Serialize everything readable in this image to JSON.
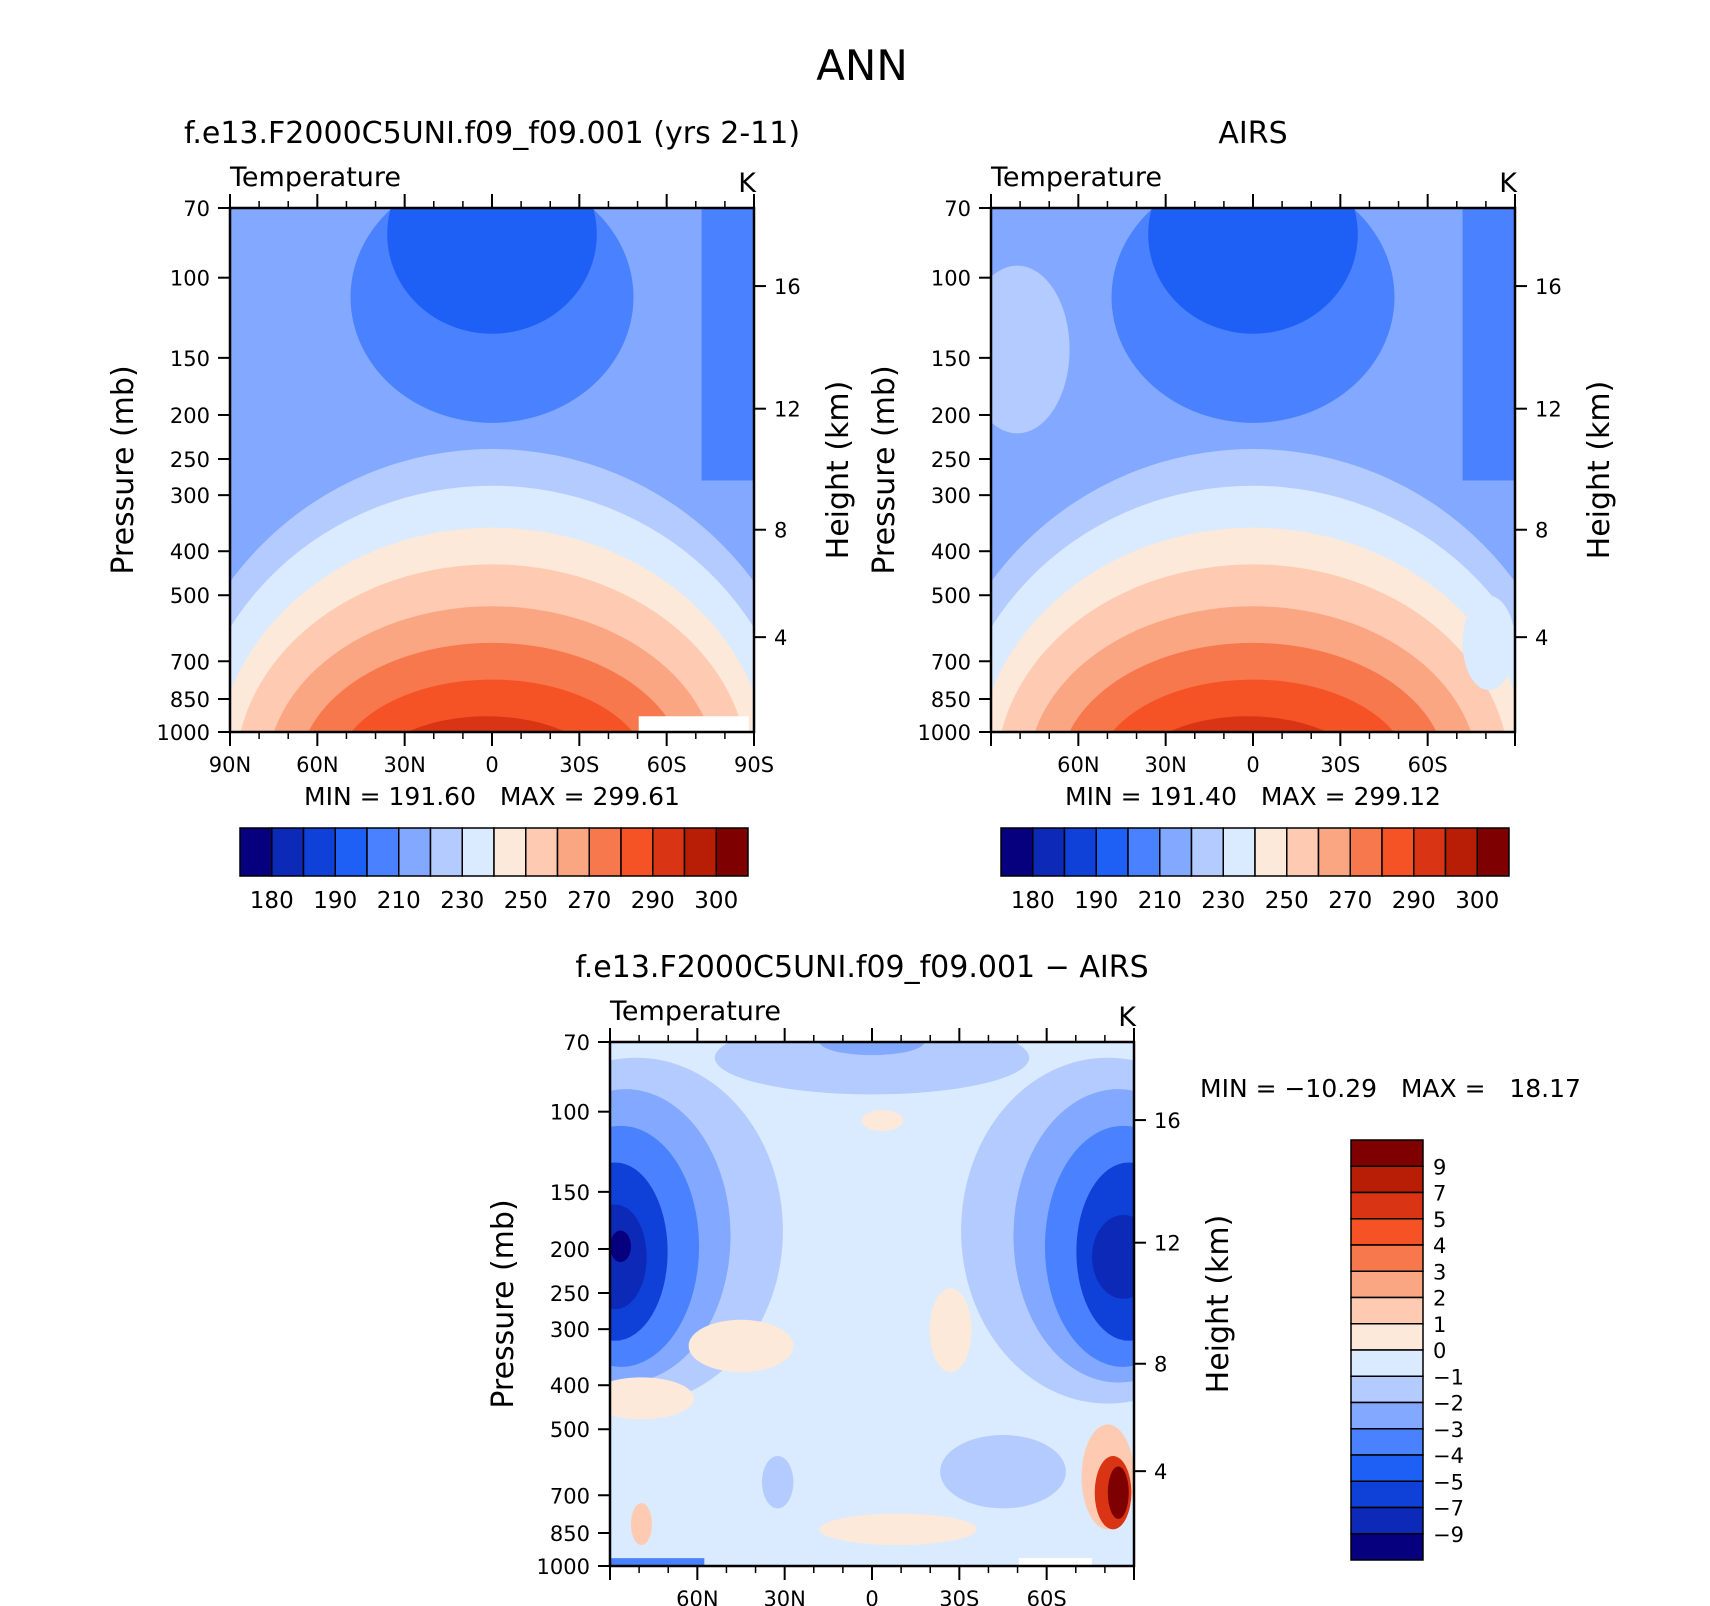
{
  "figure_title": "ANN",
  "palettes": {
    "abs": [
      "#06007f",
      "#0c29b8",
      "#0f41d8",
      "#1e5ff5",
      "#4a81ff",
      "#82a9ff",
      "#b4cbff",
      "#daeaff",
      "#fde9da",
      "#fecab2",
      "#fba682",
      "#f7784c",
      "#f55325",
      "#d93514",
      "#b81e06",
      "#7f0000"
    ],
    "diff": [
      "#06007f",
      "#0c29b8",
      "#0f41d8",
      "#1e5ff5",
      "#4a81ff",
      "#82a9ff",
      "#b4cbff",
      "#daeaff",
      "#fde9da",
      "#fecab2",
      "#fba682",
      "#f7784c",
      "#f55325",
      "#d93514",
      "#b81e06",
      "#7f0000"
    ]
  },
  "chart_data": [
    {
      "type": "heatmap",
      "title": "f.e13.F2000C5UNI.f09_f09.001 (yrs 2-11)",
      "subtitle_left": "Temperature",
      "subtitle_right": "K",
      "xlabel": "",
      "ylabel": "Pressure (mb)",
      "y2label": "Height (km)",
      "xticks": [
        "90N",
        "60N",
        "30N",
        "0",
        "30S",
        "60S",
        "90S"
      ],
      "yticks": [
        "70",
        "100",
        "150",
        "200",
        "250",
        "300",
        "400",
        "500",
        "700",
        "850",
        "1000"
      ],
      "y2ticks": [
        "16",
        "12",
        "8",
        "4"
      ],
      "stats": "MIN = 191.60   MAX = 299.61",
      "colorbar_labels": [
        "180",
        "190",
        "210",
        "230",
        "250",
        "270",
        "290",
        "300"
      ],
      "ylim": [
        1000,
        70
      ],
      "xlim": [
        90,
        -90
      ],
      "note_x": "latitude, positive = N",
      "field": "abs"
    },
    {
      "type": "heatmap",
      "title": "AIRS",
      "subtitle_left": "Temperature",
      "subtitle_right": "K",
      "xlabel": "",
      "ylabel": "Pressure (mb)",
      "y2label": "Height (km)",
      "xticks": [
        "",
        "60N",
        "30N",
        "0",
        "30S",
        "60S",
        ""
      ],
      "yticks": [
        "70",
        "100",
        "150",
        "200",
        "250",
        "300",
        "400",
        "500",
        "700",
        "850",
        "1000"
      ],
      "y2ticks": [
        "16",
        "12",
        "8",
        "4"
      ],
      "stats": "MIN = 191.40   MAX = 299.12",
      "colorbar_labels": [
        "180",
        "190",
        "210",
        "230",
        "250",
        "270",
        "290",
        "300"
      ],
      "ylim": [
        1000,
        70
      ],
      "xlim": [
        90,
        -90
      ],
      "field": "abs"
    },
    {
      "type": "heatmap",
      "title": "f.e13.F2000C5UNI.f09_f09.001 − AIRS",
      "subtitle_left": "Temperature",
      "subtitle_right": "K",
      "xlabel": "",
      "ylabel": "Pressure (mb)",
      "y2label": "Height (km)",
      "xticks": [
        "",
        "60N",
        "30N",
        "0",
        "30S",
        "60S",
        ""
      ],
      "yticks": [
        "70",
        "100",
        "150",
        "200",
        "250",
        "300",
        "400",
        "500",
        "700",
        "850",
        "1000"
      ],
      "y2ticks": [
        "16",
        "12",
        "8",
        "4"
      ],
      "stats": "MIN = −10.29   MAX =   18.17",
      "colorbar_labels": [
        "9",
        "7",
        "5",
        "4",
        "3",
        "2",
        "1",
        "0",
        "−1",
        "−2",
        "−3",
        "−4",
        "−5",
        "−7",
        "−9"
      ],
      "ylim": [
        1000,
        70
      ],
      "xlim": [
        90,
        -90
      ],
      "field": "diff"
    }
  ]
}
